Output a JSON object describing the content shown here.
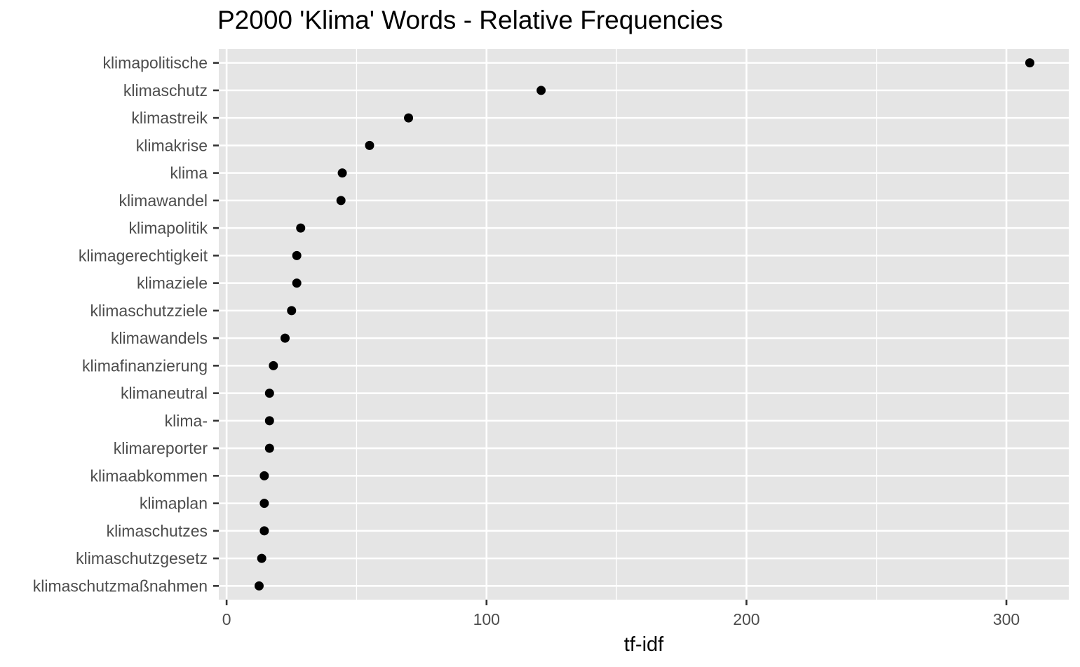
{
  "chart_data": {
    "type": "scatter",
    "title": "P2000 'Klima' Words - Relative Frequencies",
    "xlabel": "tf-idf",
    "ylabel": "",
    "xlim": [
      -3,
      324
    ],
    "xticks": [
      0,
      100,
      200,
      300
    ],
    "grid": true,
    "legend": "none",
    "categories": [
      "klimapolitische",
      "klimaschutz",
      "klimastreik",
      "klimakrise",
      "klima",
      "klimawandel",
      "klimapolitik",
      "klimagerechtigkeit",
      "klimaziele",
      "klimaschutzziele",
      "klimawandels",
      "klimafinanzierung",
      "klimaneutral",
      "klima-",
      "klimareporter",
      "klimaabkommen",
      "klimaplan",
      "klimaschutzes",
      "klimaschutzgesetz",
      "klimaschutzmaßnahmen"
    ],
    "values": [
      309,
      121,
      70,
      55,
      44.5,
      44,
      28.5,
      27,
      27,
      25,
      22.5,
      18,
      16.5,
      16.5,
      16.5,
      14.5,
      14.5,
      14.5,
      13.5,
      12.5
    ]
  },
  "colors": {
    "panel_background": "#e5e5e5",
    "grid": "#ffffff",
    "point": "#000000",
    "tick_label": "#4d4d4d",
    "tick_mark": "#333333"
  }
}
